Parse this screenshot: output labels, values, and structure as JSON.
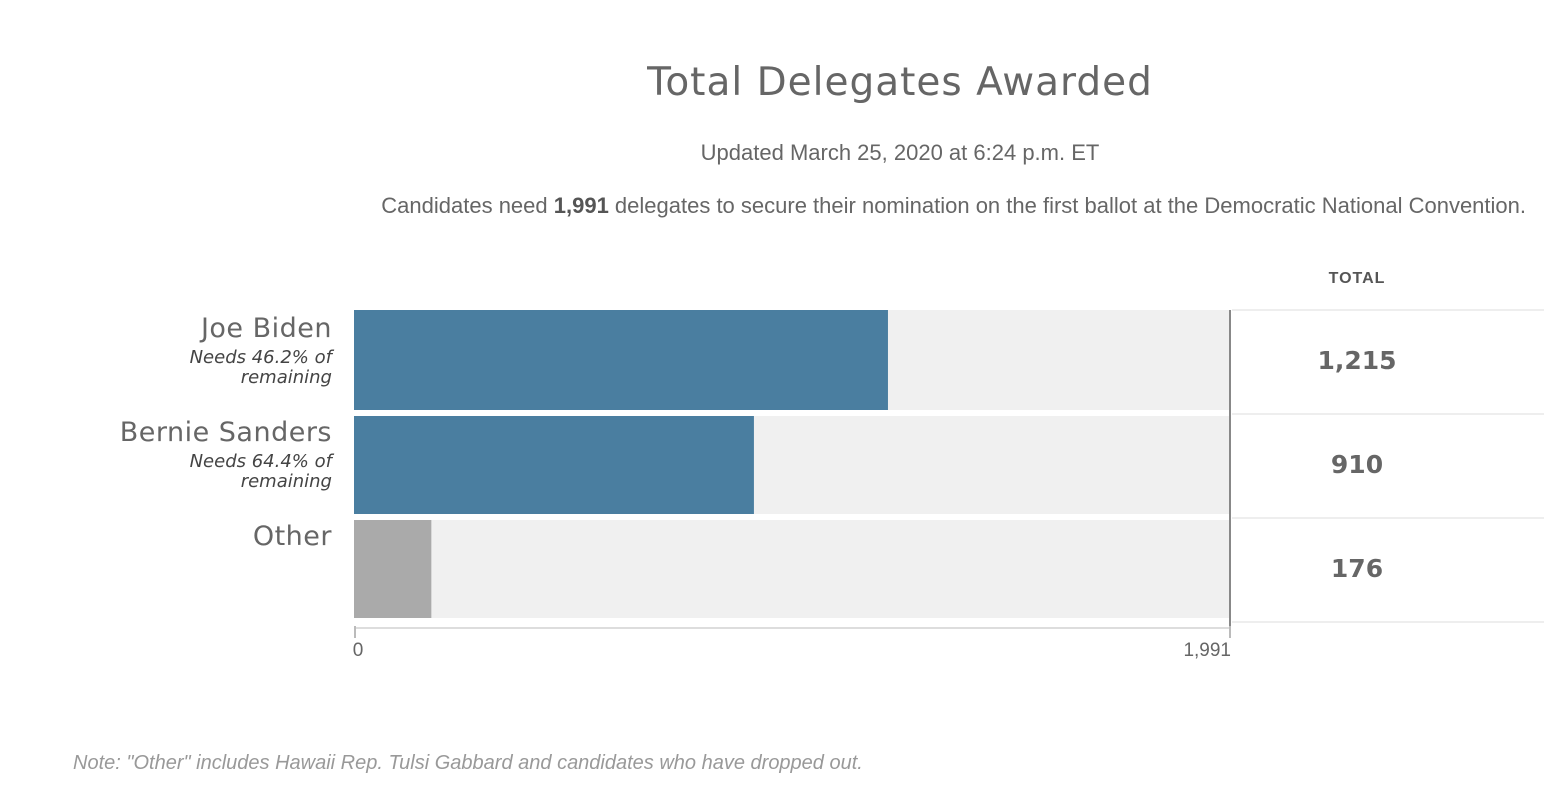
{
  "header": {
    "title": "Total Delegates Awarded",
    "updated": "Updated March 25, 2020 at 6:24 p.m. ET",
    "need_prefix": "Candidates need ",
    "need_number": "1,991",
    "need_suffix": " delegates to secure their nomination on the first ballot at the Democratic National Convention."
  },
  "table": {
    "total_header": "TOTAL"
  },
  "note": "Note: \"Other\" includes Hawaii Rep. Tulsi Gabbard and candidates who have dropped out.",
  "colors": {
    "candidate": "#4a7ea0",
    "other": "#aaaaaa",
    "track": "#f0f0f0"
  },
  "chart_data": {
    "type": "bar",
    "orientation": "horizontal",
    "categories": [
      "Joe Biden",
      "Bernie Sanders",
      "Other"
    ],
    "values": [
      1215,
      910,
      176
    ],
    "value_labels": [
      "1,215",
      "910",
      "176"
    ],
    "sublabels": [
      "Needs 46.2% of remaining",
      "Needs 64.4% of remaining",
      ""
    ],
    "xlim": [
      0,
      1991
    ],
    "x_ticks": [
      {
        "value": 0,
        "label": "0"
      },
      {
        "value": 1991,
        "label": "1,991"
      }
    ],
    "grid": false
  }
}
